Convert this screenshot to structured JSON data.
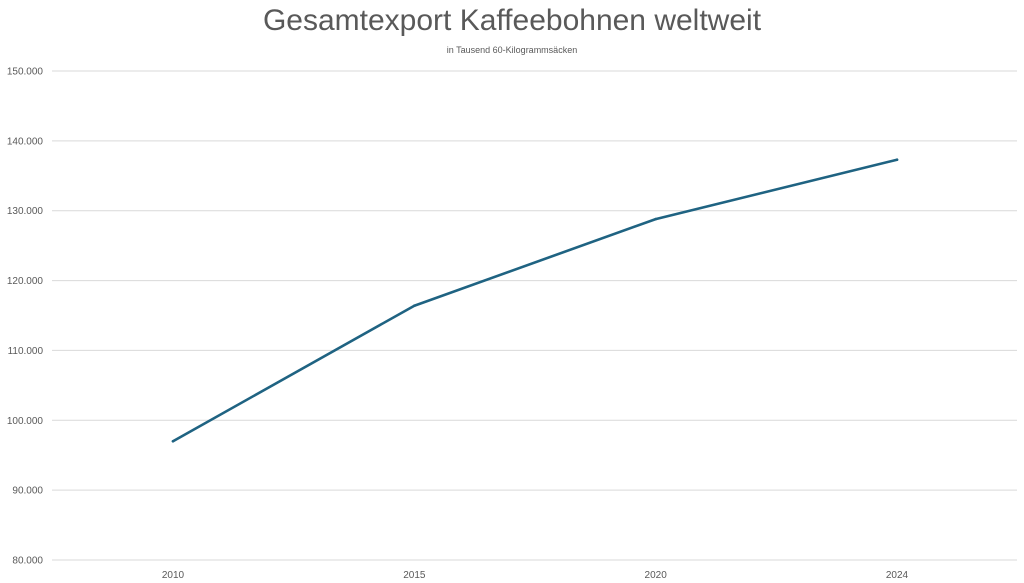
{
  "chart_data": {
    "type": "line",
    "title": "Gesamtexport Kaffeebohnen weltweit",
    "subtitle": "in Tausend 60-Kilogrammsäcken",
    "xlabel": "",
    "ylabel": "",
    "categories": [
      "2010",
      "2015",
      "2020",
      "2024"
    ],
    "series": [
      {
        "values": [
          97000,
          116400,
          128800,
          137300
        ],
        "color": "#1F6382"
      }
    ],
    "ylim": [
      80000,
      150000
    ],
    "y_ticks": [
      80000,
      90000,
      100000,
      110000,
      120000,
      130000,
      140000,
      150000
    ],
    "y_tick_labels": [
      "80.000",
      "90.000",
      "100.000",
      "110.000",
      "120.000",
      "130.000",
      "140.000",
      "150.000"
    ],
    "grid": true,
    "legend": "none",
    "colors": {
      "line": "#1F6382",
      "grid": "#D9D9D9",
      "text": "#595959"
    }
  }
}
